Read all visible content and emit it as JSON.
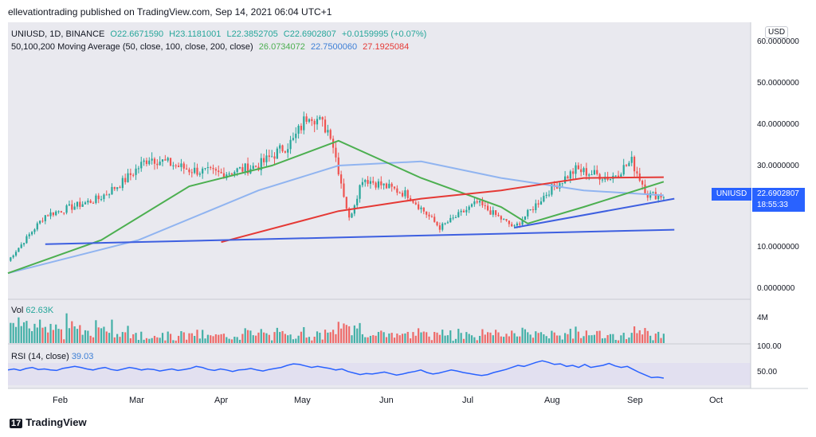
{
  "header": {
    "published": "ellevationtrading published on TradingView.com, Sep 14, 2021 06:04 UTC+1"
  },
  "legend": {
    "symbol": "UNIUSD, 1D, BINANCE",
    "o": "O22.6671590",
    "h": "H23.1181001",
    "l": "L22.3852705",
    "c": "C22.6902807",
    "chg": "+0.0159995 (+0.07%)",
    "ma_label": "50,100,200 Moving Average (50, close, 100, close, 200, close)",
    "ma50": "26.0734072",
    "ma100": "22.7500060",
    "ma200": "27.1925084"
  },
  "price_axis": {
    "currency": "USD",
    "labels": [
      "60.0000000",
      "50.0000000",
      "40.0000000",
      "30.0000000",
      "20.0000000",
      "10.0000000",
      "0.0000000"
    ],
    "symbol_tag": "UNIUSD",
    "last_price": "22.6902807",
    "countdown": "18:55:33"
  },
  "volume": {
    "label": "Vol",
    "value": "62.63K",
    "axis_label": "4M"
  },
  "rsi": {
    "label": "RSI (14, close)",
    "value": "39.03",
    "axis_labels": [
      "100.00",
      "50.00"
    ]
  },
  "x_axis": {
    "labels": [
      "Feb",
      "Mar",
      "Apr",
      "May",
      "Jun",
      "Jul",
      "Aug",
      "Sep",
      "Oct"
    ]
  },
  "footer": {
    "brand": "TradingView"
  },
  "colors": {
    "up": "#26a69a",
    "down": "#ef5350",
    "ma50": "#4caf50",
    "ma100": "#90b4f0",
    "ma200": "#e53935",
    "trend": "#3d5fe0",
    "rsi": "#2962ff",
    "bg": "#e8e8ee"
  },
  "chart_data": {
    "type": "candlestick",
    "x_start": "2021-01-11",
    "x_end": "2021-09-14",
    "price_range": [
      0,
      60
    ],
    "key_prices": [
      {
        "date": "2021-01-11",
        "price": 7
      },
      {
        "date": "2021-01-25",
        "price": 18
      },
      {
        "date": "2021-02-14",
        "price": 22
      },
      {
        "date": "2021-02-23",
        "price": 26
      },
      {
        "date": "2021-03-05",
        "price": 32
      },
      {
        "date": "2021-03-20",
        "price": 29
      },
      {
        "date": "2021-04-01",
        "price": 28
      },
      {
        "date": "2021-04-15",
        "price": 30
      },
      {
        "date": "2021-04-28",
        "price": 36
      },
      {
        "date": "2021-05-04",
        "price": 43
      },
      {
        "date": "2021-05-12",
        "price": 38
      },
      {
        "date": "2021-05-19",
        "price": 17
      },
      {
        "date": "2021-05-24",
        "price": 27
      },
      {
        "date": "2021-06-10",
        "price": 23
      },
      {
        "date": "2021-06-22",
        "price": 15
      },
      {
        "date": "2021-07-06",
        "price": 21
      },
      {
        "date": "2021-07-20",
        "price": 15
      },
      {
        "date": "2021-08-02",
        "price": 24
      },
      {
        "date": "2021-08-12",
        "price": 29
      },
      {
        "date": "2021-08-25",
        "price": 27
      },
      {
        "date": "2021-09-02",
        "price": 31
      },
      {
        "date": "2021-09-08",
        "price": 23
      },
      {
        "date": "2021-09-14",
        "price": 22.7
      }
    ],
    "ma50": [
      [
        "2021-01-11",
        4
      ],
      [
        "2021-02-15",
        12
      ],
      [
        "2021-03-20",
        25
      ],
      [
        "2021-04-20",
        30
      ],
      [
        "2021-05-15",
        36
      ],
      [
        "2021-06-15",
        27
      ],
      [
        "2021-07-15",
        20
      ],
      [
        "2021-07-25",
        16
      ],
      [
        "2021-08-15",
        20
      ],
      [
        "2021-09-14",
        26.1
      ]
    ],
    "ma100": [
      [
        "2021-01-11",
        4
      ],
      [
        "2021-03-01",
        12
      ],
      [
        "2021-04-15",
        24
      ],
      [
        "2021-05-15",
        30
      ],
      [
        "2021-06-15",
        31
      ],
      [
        "2021-07-15",
        27
      ],
      [
        "2021-08-15",
        24
      ],
      [
        "2021-09-14",
        22.8
      ]
    ],
    "ma200": [
      [
        "2021-04-01",
        11.5
      ],
      [
        "2021-05-15",
        19
      ],
      [
        "2021-06-15",
        22
      ],
      [
        "2021-07-15",
        24
      ],
      [
        "2021-08-15",
        27
      ],
      [
        "2021-09-14",
        27.2
      ]
    ],
    "trendlines": [
      {
        "from": [
          "2021-01-25",
          11
        ],
        "to": [
          "2021-09-18",
          14.5
        ]
      },
      {
        "from": [
          "2021-07-20",
          15
        ],
        "to": [
          "2021-09-18",
          22
        ]
      }
    ],
    "rsi_range": [
      0,
      100
    ],
    "rsi": [
      55,
      57,
      54,
      58,
      60,
      56,
      57,
      55,
      54,
      58,
      60,
      62,
      60,
      57,
      55,
      58,
      60,
      56,
      54,
      57,
      60,
      58,
      55,
      57,
      56,
      53,
      55,
      57,
      54,
      56,
      58,
      62,
      60,
      56,
      54,
      57,
      55,
      52,
      55,
      56,
      58,
      55,
      53,
      56,
      58,
      60,
      64,
      67,
      66,
      63,
      60,
      62,
      60,
      58,
      55,
      57,
      52,
      49,
      46,
      48,
      47,
      49,
      51,
      48,
      45,
      47,
      50,
      52,
      55,
      50,
      47,
      49,
      52,
      55,
      53,
      50,
      48,
      46,
      44,
      46,
      50,
      53,
      56,
      60,
      64,
      62,
      66,
      70,
      73,
      70,
      66,
      67,
      62,
      64,
      60,
      66,
      60,
      62,
      64,
      68,
      63,
      60,
      62,
      56,
      50,
      45,
      40,
      41,
      39
    ]
  }
}
